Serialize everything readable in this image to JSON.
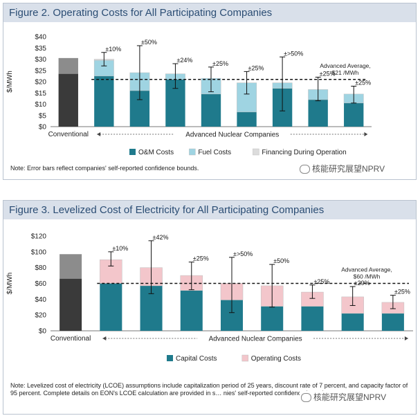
{
  "figures": [
    {
      "title": "Figure 2. Operating Costs for All Participating Companies",
      "note": "Note: Error bars reflect companies' self-reported confidence bounds.",
      "watermark": "核能研究展望NPRV"
    },
    {
      "title": "Figure 3. Levelized Cost of Electricity for All Participating Companies",
      "note": "Note: Levelized cost of electricity (LCOE) assumptions include capitalization period of 25 years, discount rate of 7 percent, and capacity factor of 95 percent. Complete details on EON's LCOE calculation are provided in s… nies' self-reported confidence bounds.",
      "watermark": "核能研究展望NPRV"
    }
  ],
  "chart_data": [
    {
      "type": "bar",
      "stacked": true,
      "ylabel": "$/MWh",
      "ylim": [
        0,
        40
      ],
      "yticks": [
        "$0",
        "$5",
        "$10",
        "$15",
        "$20",
        "$25",
        "$30",
        "$35",
        "$40"
      ],
      "categories": [
        "Conventional",
        "",
        "",
        "",
        "",
        "",
        "",
        "",
        ""
      ],
      "group_label": "Advanced Nuclear Companies",
      "series": [
        {
          "name": "O&M Costs",
          "values": [
            23.5,
            22.5,
            16,
            21,
            14.5,
            6.5,
            17,
            12,
            10.5
          ]
        },
        {
          "name": "Fuel Costs",
          "values": [
            7,
            7,
            8,
            2.5,
            7,
            13,
            2.5,
            4.5,
            4
          ]
        },
        {
          "name": "Financing During Operation",
          "values": [
            0,
            0.5,
            0,
            0,
            0,
            0,
            0,
            0,
            0
          ]
        }
      ],
      "error_labels": [
        "",
        "±10%",
        "±50%",
        "±24%",
        "±25%",
        "±25%",
        "±>50%",
        "±25%",
        "±25%"
      ],
      "error_bars": [
        null,
        [
          27,
          33
        ],
        [
          12,
          36
        ],
        [
          17,
          28
        ],
        [
          15.5,
          26.5
        ],
        [
          14.5,
          24.5
        ],
        [
          7,
          31
        ],
        [
          11.5,
          22
        ],
        [
          10.5,
          18
        ]
      ],
      "reference_line": {
        "value": 21,
        "label": "Advanced Average,",
        "sublabel": "$21 /MWh"
      },
      "colors": {
        "conventional": "#3a3a3a",
        "conventional_top": "#8c8c8c",
        "primary": "#1f7a8c",
        "secondary": "#9fd4e2",
        "financing": "#dcdcdc"
      }
    },
    {
      "type": "bar",
      "stacked": true,
      "ylabel": "$/MWh",
      "ylim": [
        0,
        120
      ],
      "yticks": [
        "$0",
        "$20",
        "$40",
        "$60",
        "$80",
        "$100",
        "$120"
      ],
      "categories": [
        "Conventional",
        "",
        "",
        "",
        "",
        "",
        "",
        "",
        ""
      ],
      "group_label": "Advanced Nuclear Companies",
      "series": [
        {
          "name": "Capital Costs",
          "values": [
            66,
            60,
            57,
            51,
            39,
            31,
            31,
            22,
            22
          ]
        },
        {
          "name": "Operating Costs",
          "values": [
            31,
            30,
            23,
            19,
            21,
            26,
            18,
            21,
            14
          ]
        }
      ],
      "error_labels": [
        "",
        "±10%",
        "±42%",
        "±25%",
        "±>50%",
        "±50%",
        "±25%",
        "±29%",
        "±25%"
      ],
      "error_bars": [
        null,
        [
          82,
          100
        ],
        [
          47,
          114
        ],
        [
          52,
          87
        ],
        [
          23,
          93
        ],
        [
          30,
          84
        ],
        [
          41,
          58
        ],
        [
          32,
          56
        ],
        [
          28,
          45
        ]
      ],
      "reference_line": {
        "value": 60,
        "label": "Advanced Average,",
        "sublabel": "$60 /MWh"
      },
      "colors": {
        "conventional": "#3a3a3a",
        "conventional_top": "#8c8c8c",
        "primary": "#1f7a8c",
        "secondary": "#f3c6cb"
      }
    }
  ]
}
